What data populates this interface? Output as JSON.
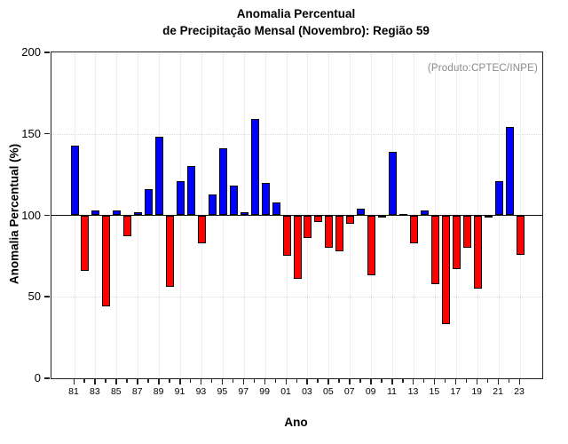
{
  "title": {
    "line1": "Anomalia Percentual",
    "line2": "de Precipitação Mensal (Novembro): Região 59"
  },
  "annotation": "(Produto:CPTEC/INPE)",
  "axes": {
    "y_label": "Anomalia Percentual (%)",
    "x_label": "Ano",
    "y_ticks": [
      200,
      150,
      100,
      50,
      0
    ],
    "x_tick_labels": [
      "81",
      "83",
      "85",
      "87",
      "89",
      "91",
      "93",
      "95",
      "97",
      "99",
      "01",
      "03",
      "05",
      "07",
      "09",
      "11",
      "13",
      "15",
      "17",
      "19",
      "21",
      "23"
    ]
  },
  "chart_data": {
    "type": "bar",
    "title": "Anomalia Percentual de Precipitação Mensal (Novembro): Região 59",
    "xlabel": "Ano",
    "ylabel": "Anomalia Percentual (%)",
    "ylim": [
      0,
      200
    ],
    "baseline": 100,
    "grid": "dotted horizontal at 50 and 150, dotted vertical at labeled years",
    "legend": "none",
    "colors": {
      "above_baseline": "#0000ff",
      "below_baseline": "#ff0000",
      "annotation_gray": "#8a8a8a"
    },
    "bars": [
      {
        "year": "81",
        "value": 143
      },
      {
        "year": "82",
        "value": 66
      },
      {
        "year": "83",
        "value": 103
      },
      {
        "year": "84",
        "value": 44
      },
      {
        "year": "85",
        "value": 103
      },
      {
        "year": "86",
        "value": 87
      },
      {
        "year": "87",
        "value": 102
      },
      {
        "year": "88",
        "value": 116
      },
      {
        "year": "89",
        "value": 148
      },
      {
        "year": "90",
        "value": 56
      },
      {
        "year": "91",
        "value": 121
      },
      {
        "year": "92",
        "value": 130
      },
      {
        "year": "93",
        "value": 83
      },
      {
        "year": "94",
        "value": 113
      },
      {
        "year": "95",
        "value": 141
      },
      {
        "year": "96",
        "value": 118
      },
      {
        "year": "97",
        "value": 102
      },
      {
        "year": "98",
        "value": 159
      },
      {
        "year": "99",
        "value": 120
      },
      {
        "year": "00",
        "value": 108
      },
      {
        "year": "01",
        "value": 75
      },
      {
        "year": "02",
        "value": 61
      },
      {
        "year": "03",
        "value": 86
      },
      {
        "year": "04",
        "value": 96
      },
      {
        "year": "05",
        "value": 80
      },
      {
        "year": "06",
        "value": 78
      },
      {
        "year": "07",
        "value": 95
      },
      {
        "year": "08",
        "value": 104
      },
      {
        "year": "09",
        "value": 63
      },
      {
        "year": "10",
        "value": 99
      },
      {
        "year": "11",
        "value": 139
      },
      {
        "year": "12",
        "value": 101
      },
      {
        "year": "13",
        "value": 83
      },
      {
        "year": "14",
        "value": 103
      },
      {
        "year": "15",
        "value": 58
      },
      {
        "year": "16",
        "value": 33
      },
      {
        "year": "17",
        "value": 67
      },
      {
        "year": "18",
        "value": 80
      },
      {
        "year": "19",
        "value": 55
      },
      {
        "year": "20",
        "value": 99
      },
      {
        "year": "21",
        "value": 121
      },
      {
        "year": "22",
        "value": 154
      },
      {
        "year": "23",
        "value": 76
      }
    ]
  }
}
